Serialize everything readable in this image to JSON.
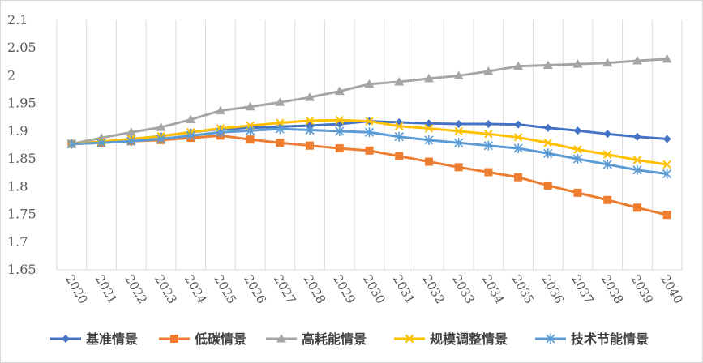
{
  "chart_data": {
    "type": "line",
    "title": "",
    "xlabel": "",
    "ylabel": "",
    "ylim": [
      1.65,
      2.1
    ],
    "yticks": [
      "1.65",
      "1.7",
      "1.75",
      "1.8",
      "1.85",
      "1.9",
      "1.95",
      "2",
      "2.05",
      "2.1"
    ],
    "ytick_values": [
      1.65,
      1.7,
      1.75,
      1.8,
      1.85,
      1.9,
      1.95,
      2.0,
      2.05,
      2.1
    ],
    "grid": "vertical",
    "legend_position": "bottom",
    "categories": [
      "2020",
      "2021",
      "2022",
      "2023",
      "2024",
      "2025",
      "2026",
      "2027",
      "2028",
      "2029",
      "2030",
      "2031",
      "2032",
      "2033",
      "2034",
      "2035",
      "2036",
      "2037",
      "2038",
      "2039",
      "2040"
    ],
    "series": [
      {
        "name": "基准情景",
        "color": "#4472C4",
        "marker": "diamond",
        "values": [
          1.877,
          1.88,
          1.885,
          1.891,
          1.898,
          1.904,
          1.906,
          1.908,
          1.91,
          1.913,
          1.918,
          1.916,
          1.914,
          1.913,
          1.913,
          1.912,
          1.906,
          1.901,
          1.895,
          1.89,
          1.886
        ]
      },
      {
        "name": "低碳情景",
        "color": "#ED7D31",
        "marker": "square",
        "values": [
          1.877,
          1.879,
          1.882,
          1.884,
          1.888,
          1.892,
          1.885,
          1.879,
          1.874,
          1.869,
          1.865,
          1.855,
          1.845,
          1.835,
          1.826,
          1.817,
          1.802,
          1.789,
          1.776,
          1.762,
          1.749
        ]
      },
      {
        "name": "高耗能情景",
        "color": "#A5A5A5",
        "marker": "triangle",
        "values": [
          1.877,
          1.888,
          1.898,
          1.907,
          1.921,
          1.937,
          1.944,
          1.952,
          1.961,
          1.972,
          1.985,
          1.989,
          1.995,
          2.0,
          2.008,
          2.017,
          2.019,
          2.021,
          2.023,
          2.027,
          2.03
        ]
      },
      {
        "name": "规模调整情景",
        "color": "#FFC000",
        "marker": "x",
        "values": [
          1.877,
          1.881,
          1.886,
          1.891,
          1.898,
          1.905,
          1.91,
          1.915,
          1.919,
          1.92,
          1.918,
          1.909,
          1.905,
          1.9,
          1.895,
          1.889,
          1.879,
          1.867,
          1.858,
          1.848,
          1.84
        ]
      },
      {
        "name": "技术节能情景",
        "color": "#5B9BD5",
        "marker": "star",
        "values": [
          1.877,
          1.879,
          1.882,
          1.886,
          1.892,
          1.898,
          1.901,
          1.904,
          1.902,
          1.9,
          1.898,
          1.89,
          1.884,
          1.879,
          1.874,
          1.869,
          1.86,
          1.85,
          1.84,
          1.83,
          1.823
        ]
      }
    ]
  }
}
